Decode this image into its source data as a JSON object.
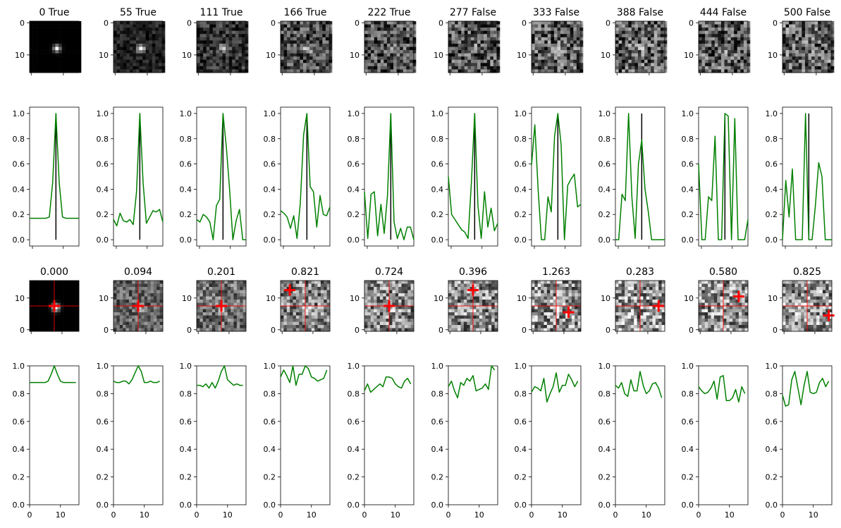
{
  "chart_data": {
    "type": "grid",
    "row_types": [
      "heatmap",
      "line",
      "heatmap",
      "line"
    ],
    "image_axis": {
      "yticks": [
        "0",
        "10"
      ],
      "yticks_overlay": [
        "10",
        "0"
      ],
      "xlim": [
        -0.5,
        15.5
      ]
    },
    "line_axis_row2": {
      "yticks": [
        "0.0",
        "0.2",
        "0.4",
        "0.6",
        "0.8",
        "1.0"
      ],
      "ylim": [
        -0.05,
        1.05
      ],
      "x_count": 16
    },
    "line_axis_row4": {
      "yticks": [
        "0.0",
        "0.2",
        "0.4",
        "0.6",
        "0.8",
        "1.0"
      ],
      "xticks": [
        "0",
        "10"
      ],
      "ylim": [
        0,
        1
      ],
      "xlim": [
        0,
        16
      ]
    },
    "colors": {
      "line": "#008000",
      "marker": "#ff0000",
      "stem": "#000000",
      "crosshair": "#ff0000"
    },
    "columns": [
      {
        "title": "0 True",
        "score": "0.000",
        "blob": 1.0,
        "noise": 0.0,
        "marker": [
          8,
          8
        ],
        "row2": [
          0.17,
          0.17,
          0.17,
          0.17,
          0.17,
          0.17,
          0.18,
          0.45,
          1.0,
          0.45,
          0.18,
          0.17,
          0.17,
          0.17,
          0.17,
          0.17
        ],
        "row4": [
          0.88,
          0.88,
          0.88,
          0.88,
          0.88,
          0.88,
          0.89,
          0.94,
          1.0,
          0.94,
          0.89,
          0.88,
          0.88,
          0.88,
          0.88,
          0.88
        ]
      },
      {
        "title": "55 True",
        "score": "0.094",
        "blob": 0.85,
        "noise": 0.35,
        "marker": [
          8,
          8
        ],
        "row2": [
          0.16,
          0.11,
          0.21,
          0.15,
          0.14,
          0.16,
          0.12,
          0.38,
          1.0,
          0.45,
          0.13,
          0.18,
          0.23,
          0.22,
          0.24,
          0.14
        ],
        "row4": [
          0.89,
          0.88,
          0.88,
          0.89,
          0.89,
          0.87,
          0.9,
          0.95,
          1.0,
          0.96,
          0.88,
          0.88,
          0.89,
          0.88,
          0.88,
          0.89
        ]
      },
      {
        "title": "111 True",
        "score": "0.201",
        "blob": 0.8,
        "noise": 0.55,
        "marker": [
          8,
          8
        ],
        "row2": [
          0.16,
          0.14,
          0.2,
          0.18,
          0.14,
          0.0,
          0.27,
          0.32,
          1.0,
          0.74,
          0.4,
          0.0,
          0.15,
          0.24,
          0.0,
          0.0
        ],
        "row4": [
          0.86,
          0.86,
          0.85,
          0.87,
          0.84,
          0.88,
          0.84,
          0.89,
          0.96,
          1.0,
          0.9,
          0.88,
          0.86,
          0.87,
          0.86,
          0.86
        ]
      },
      {
        "title": "166 True",
        "score": "0.821",
        "blob": 0.6,
        "noise": 0.8,
        "marker": [
          3,
          13
        ],
        "row2": [
          0.23,
          0.21,
          0.18,
          0.09,
          0.19,
          0.01,
          0.29,
          0.83,
          1.0,
          0.42,
          0.38,
          0.1,
          0.35,
          0.2,
          0.19,
          0.26
        ],
        "row4": [
          0.92,
          0.97,
          0.93,
          0.88,
          1.0,
          0.86,
          0.94,
          0.94,
          1.0,
          0.98,
          0.92,
          0.91,
          0.89,
          0.9,
          0.91,
          0.97
        ]
      },
      {
        "title": "222 True",
        "score": "0.724",
        "blob": 0.45,
        "noise": 0.85,
        "marker": [
          8,
          8
        ],
        "row2": [
          0.38,
          0.01,
          0.36,
          0.38,
          0.03,
          0.28,
          0.05,
          0.35,
          1.0,
          0.14,
          0.01,
          0.09,
          0.0,
          0.1,
          0.1,
          0.0
        ],
        "row4": [
          0.82,
          0.87,
          0.81,
          0.83,
          0.85,
          0.87,
          0.85,
          0.92,
          0.92,
          0.91,
          0.87,
          0.85,
          0.84,
          0.89,
          0.91,
          0.87
        ]
      },
      {
        "title": "277 False",
        "score": "0.396",
        "blob": 0.3,
        "noise": 0.9,
        "marker": [
          8,
          13
        ],
        "row2": [
          0.5,
          0.2,
          0.16,
          0.12,
          0.08,
          0.06,
          0.01,
          0.45,
          1.0,
          0.27,
          0.01,
          0.38,
          0.1,
          0.25,
          0.07,
          0.13
        ],
        "row4": [
          0.85,
          0.89,
          0.82,
          0.77,
          0.88,
          0.86,
          0.91,
          0.89,
          0.93,
          0.82,
          0.83,
          0.84,
          0.87,
          0.83,
          1.0,
          0.97
        ]
      },
      {
        "title": "333 False",
        "score": "1.263",
        "blob": 0.25,
        "noise": 0.95,
        "marker": [
          12,
          6
        ],
        "row2": [
          0.59,
          0.91,
          0.4,
          0.0,
          0.0,
          0.34,
          0.22,
          0.82,
          1.0,
          0.75,
          0.0,
          0.43,
          0.48,
          0.52,
          0.26,
          0.28
        ],
        "row4": [
          0.81,
          0.85,
          0.84,
          0.82,
          0.91,
          0.74,
          0.8,
          0.85,
          0.95,
          0.81,
          0.86,
          0.86,
          0.94,
          0.9,
          0.85,
          0.89
        ]
      },
      {
        "title": "388 False",
        "score": "0.283",
        "blob": 0.15,
        "noise": 1.0,
        "marker": [
          14,
          8
        ],
        "row2": [
          0.0,
          0.0,
          0.36,
          0.31,
          1.0,
          0.34,
          0.01,
          0.6,
          0.79,
          0.4,
          0.22,
          0.0,
          0.0,
          0.0,
          0.0,
          0.0
        ],
        "row4": [
          0.86,
          0.84,
          0.88,
          0.8,
          0.78,
          0.9,
          0.82,
          0.82,
          0.96,
          0.86,
          0.8,
          0.82,
          0.87,
          0.88,
          0.84,
          0.77
        ]
      },
      {
        "title": "444 False",
        "score": "0.580",
        "blob": 0.2,
        "noise": 0.95,
        "marker": [
          13,
          11
        ],
        "row2": [
          0.6,
          0.0,
          0.0,
          0.34,
          0.31,
          0.82,
          0.0,
          0.0,
          1.0,
          0.98,
          0.0,
          0.96,
          0.0,
          0.0,
          0.0,
          0.16
        ],
        "row4": [
          0.85,
          0.82,
          0.8,
          0.81,
          0.84,
          0.89,
          0.76,
          0.92,
          0.93,
          0.75,
          0.75,
          0.77,
          0.83,
          0.74,
          0.85,
          0.8
        ]
      },
      {
        "title": "500 False",
        "score": "0.825",
        "blob": 0.15,
        "noise": 1.0,
        "marker": [
          15,
          5
        ],
        "row2": [
          0.0,
          0.47,
          0.18,
          0.56,
          0.0,
          0.0,
          0.0,
          1.0,
          0.0,
          0.0,
          0.27,
          0.61,
          0.5,
          0.0,
          0.0,
          0.0
        ],
        "row4": [
          0.79,
          0.71,
          0.72,
          0.9,
          0.96,
          0.84,
          0.72,
          0.86,
          0.96,
          0.81,
          0.8,
          0.81,
          0.88,
          0.91,
          0.85,
          0.89
        ]
      }
    ]
  }
}
